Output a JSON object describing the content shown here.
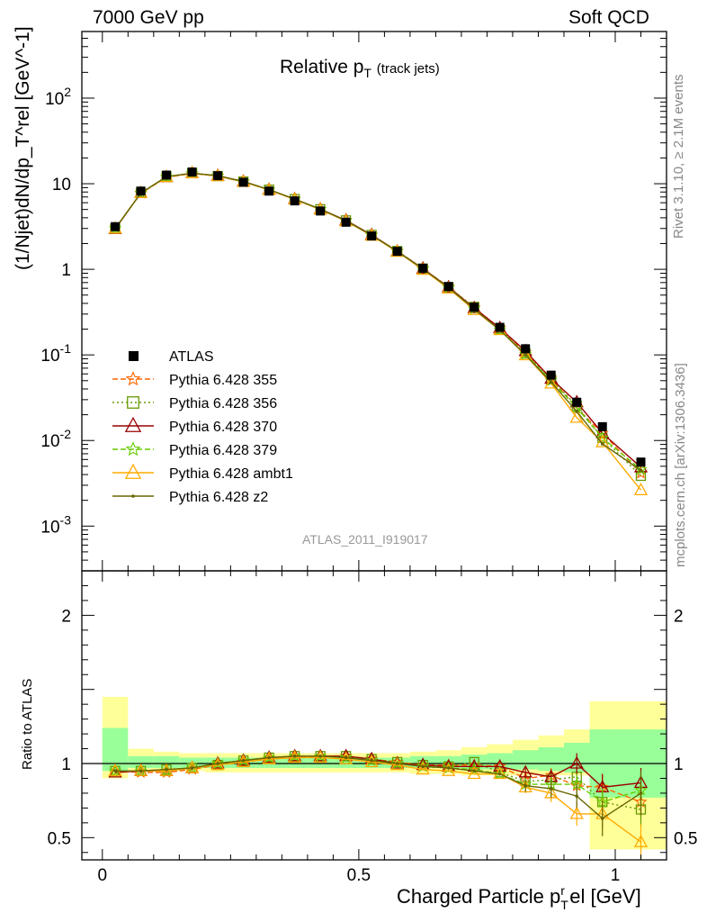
{
  "header": {
    "left": "7000 GeV pp",
    "right": "Soft QCD"
  },
  "side_labels": {
    "rivet": "Rivet 3.1.10, ≥ 2.1M events",
    "mcplots": "mcplots.cern.ch [arXiv:1306.3436]"
  },
  "chart_data": {
    "type": "line",
    "title": "Relative p_T (track jets)",
    "title_main": "Relative p",
    "title_sub": "T",
    "title_note": "(track jets)",
    "watermark": "ATLAS_2011_I919017",
    "xlabel": "Charged Particle p_T^rel [GeV]",
    "xlabel_main": "Charged Particle p",
    "xlabel_sub": "T",
    "xlabel_sup": "r",
    "xlabel_tail": "el [GeV]",
    "ylabel": "(1/Njet)dN/dp_T^rel [GeV^-1]",
    "ratio_ylabel": "Ratio to ATLAS",
    "xlim": [
      -0.04,
      1.1
    ],
    "ylim_log": [
      0.0003,
      600
    ],
    "ratio_ylim": [
      0.35,
      2.3
    ],
    "x_ticks": [
      {
        "v": 0,
        "label": "0"
      },
      {
        "v": 0.5,
        "label": "0.5"
      },
      {
        "v": 1,
        "label": "1"
      }
    ],
    "y_ticks": [
      {
        "v": 0.001,
        "base": "10",
        "exp": "-3"
      },
      {
        "v": 0.01,
        "base": "10",
        "exp": "-2"
      },
      {
        "v": 0.1,
        "base": "10",
        "exp": "-1"
      },
      {
        "v": 1,
        "base": "1",
        "exp": ""
      },
      {
        "v": 10,
        "base": "10",
        "exp": ""
      },
      {
        "v": 100,
        "base": "10",
        "exp": "2"
      }
    ],
    "ratio_ticks": [
      {
        "v": 0.5,
        "label": "0.5"
      },
      {
        "v": 1,
        "label": "1"
      },
      {
        "v": 2,
        "label": "2"
      }
    ],
    "legend_position": "middle-left",
    "x": [
      0.025,
      0.075,
      0.125,
      0.175,
      0.225,
      0.275,
      0.325,
      0.375,
      0.425,
      0.475,
      0.525,
      0.575,
      0.625,
      0.675,
      0.725,
      0.775,
      0.825,
      0.875,
      0.925,
      0.975,
      1.05
    ],
    "bin_edges": [
      0,
      0.05,
      0.1,
      0.15,
      0.2,
      0.25,
      0.3,
      0.35,
      0.4,
      0.45,
      0.5,
      0.55,
      0.6,
      0.65,
      0.7,
      0.75,
      0.8,
      0.85,
      0.9,
      0.95,
      1.0,
      1.1
    ],
    "data": {
      "name": "ATLAS",
      "values": [
        3.15,
        8.2,
        12.6,
        13.7,
        12.4,
        10.4,
        8.2,
        6.3,
        4.8,
        3.55,
        2.45,
        1.62,
        1.03,
        0.63,
        0.36,
        0.21,
        0.118,
        0.058,
        0.028,
        0.0145,
        0.0056
      ]
    },
    "band_yellow": [
      [
        0.9,
        1.45
      ],
      [
        0.95,
        1.1
      ],
      [
        0.95,
        1.08
      ],
      [
        0.95,
        1.07
      ],
      [
        0.94,
        1.07
      ],
      [
        0.94,
        1.07
      ],
      [
        0.94,
        1.07
      ],
      [
        0.94,
        1.07
      ],
      [
        0.94,
        1.07
      ],
      [
        0.94,
        1.07
      ],
      [
        0.94,
        1.07
      ],
      [
        0.94,
        1.07
      ],
      [
        0.93,
        1.08
      ],
      [
        0.93,
        1.09
      ],
      [
        0.92,
        1.11
      ],
      [
        0.92,
        1.13
      ],
      [
        0.92,
        1.16
      ],
      [
        0.92,
        1.19
      ],
      [
        0.92,
        1.23
      ],
      [
        0.42,
        1.42
      ],
      [
        0.42,
        1.42
      ]
    ],
    "band_green": [
      [
        0.95,
        1.24
      ],
      [
        0.97,
        1.05
      ],
      [
        0.97,
        1.05
      ],
      [
        0.97,
        1.04
      ],
      [
        0.97,
        1.04
      ],
      [
        0.97,
        1.04
      ],
      [
        0.97,
        1.04
      ],
      [
        0.97,
        1.04
      ],
      [
        0.97,
        1.04
      ],
      [
        0.97,
        1.04
      ],
      [
        0.97,
        1.04
      ],
      [
        0.97,
        1.04
      ],
      [
        0.97,
        1.05
      ],
      [
        0.97,
        1.05
      ],
      [
        0.96,
        1.06
      ],
      [
        0.96,
        1.07
      ],
      [
        0.96,
        1.09
      ],
      [
        0.95,
        1.11
      ],
      [
        0.94,
        1.14
      ],
      [
        0.77,
        1.23
      ],
      [
        0.77,
        1.23
      ]
    ],
    "series": [
      {
        "name": "Pythia 6.428 355",
        "color": "#ff6600",
        "dash": "6,3",
        "marker": "star",
        "ratio": [
          0.95,
          0.94,
          0.94,
          0.96,
          0.99,
          1.01,
          1.03,
          1.04,
          1.05,
          1.05,
          1.03,
          1.01,
          0.99,
          0.99,
          0.99,
          0.98,
          0.9,
          0.92,
          0.85,
          0.84,
          0.74
        ],
        "err": [
          0,
          0,
          0,
          0,
          0,
          0,
          0,
          0,
          0,
          0,
          0,
          0,
          0,
          0,
          0,
          0,
          0.04,
          0.05,
          0.07,
          0.09,
          0.12
        ]
      },
      {
        "name": "Pythia 6.428 356",
        "color": "#669900",
        "dash": "2,3",
        "marker": "square",
        "ratio": [
          0.95,
          0.95,
          0.96,
          0.97,
          0.99,
          1.02,
          1.04,
          1.05,
          1.05,
          1.05,
          1.03,
          1.01,
          0.99,
          0.98,
          1.01,
          0.94,
          0.88,
          0.89,
          0.91,
          0.74,
          0.69
        ],
        "err": [
          0,
          0,
          0,
          0,
          0,
          0,
          0,
          0,
          0,
          0,
          0,
          0,
          0,
          0,
          0,
          0,
          0.04,
          0.05,
          0.07,
          0.09,
          0.12
        ]
      },
      {
        "name": "Pythia 6.428 370",
        "color": "#990000",
        "dash": "",
        "marker": "triangle",
        "ratio": [
          0.94,
          0.95,
          0.95,
          0.97,
          1.0,
          1.02,
          1.04,
          1.05,
          1.05,
          1.05,
          1.03,
          1.0,
          0.99,
          0.98,
          0.98,
          0.98,
          0.94,
          0.91,
          1.0,
          0.84,
          0.87
        ],
        "err": [
          0,
          0,
          0,
          0,
          0,
          0,
          0,
          0,
          0,
          0,
          0,
          0,
          0,
          0,
          0,
          0,
          0.04,
          0.05,
          0.07,
          0.09,
          0.1
        ]
      },
      {
        "name": "Pythia 6.428 379",
        "color": "#66cc00",
        "dash": "6,3",
        "marker": "star",
        "ratio": [
          0.95,
          0.95,
          0.95,
          0.97,
          1.0,
          1.02,
          1.04,
          1.05,
          1.05,
          1.04,
          1.02,
          1.0,
          0.98,
          0.97,
          0.96,
          0.93,
          0.86,
          0.86,
          0.86,
          0.74,
          0.82
        ],
        "err": [
          0,
          0,
          0,
          0,
          0,
          0,
          0,
          0,
          0,
          0,
          0,
          0,
          0,
          0,
          0,
          0,
          0.04,
          0.05,
          0.07,
          0.09,
          0.1
        ]
      },
      {
        "name": "Pythia 6.428 ambt1",
        "color": "#ffaa00",
        "dash": "",
        "marker": "triangle",
        "ratio": [
          0.95,
          0.95,
          0.95,
          0.97,
          0.99,
          1.01,
          1.03,
          1.04,
          1.04,
          1.03,
          1.01,
          0.99,
          0.96,
          0.95,
          0.93,
          0.93,
          0.84,
          0.8,
          0.66,
          0.66,
          0.47
        ],
        "err": [
          0,
          0,
          0,
          0,
          0,
          0,
          0,
          0,
          0,
          0,
          0,
          0,
          0,
          0,
          0,
          0,
          0.04,
          0.06,
          0.08,
          0.1,
          0.12
        ]
      },
      {
        "name": "Pythia 6.428 z2",
        "color": "#666600",
        "dash": "",
        "marker": "dot",
        "ratio": [
          0.95,
          0.95,
          0.96,
          0.97,
          1.0,
          1.02,
          1.04,
          1.05,
          1.05,
          1.04,
          1.02,
          1.0,
          0.98,
          0.97,
          0.95,
          0.93,
          0.85,
          0.83,
          0.78,
          0.63,
          0.8
        ],
        "err": [
          0,
          0,
          0,
          0,
          0,
          0,
          0,
          0,
          0,
          0,
          0,
          0,
          0,
          0,
          0,
          0,
          0.04,
          0.06,
          0.08,
          0.12,
          0.15
        ]
      }
    ]
  }
}
